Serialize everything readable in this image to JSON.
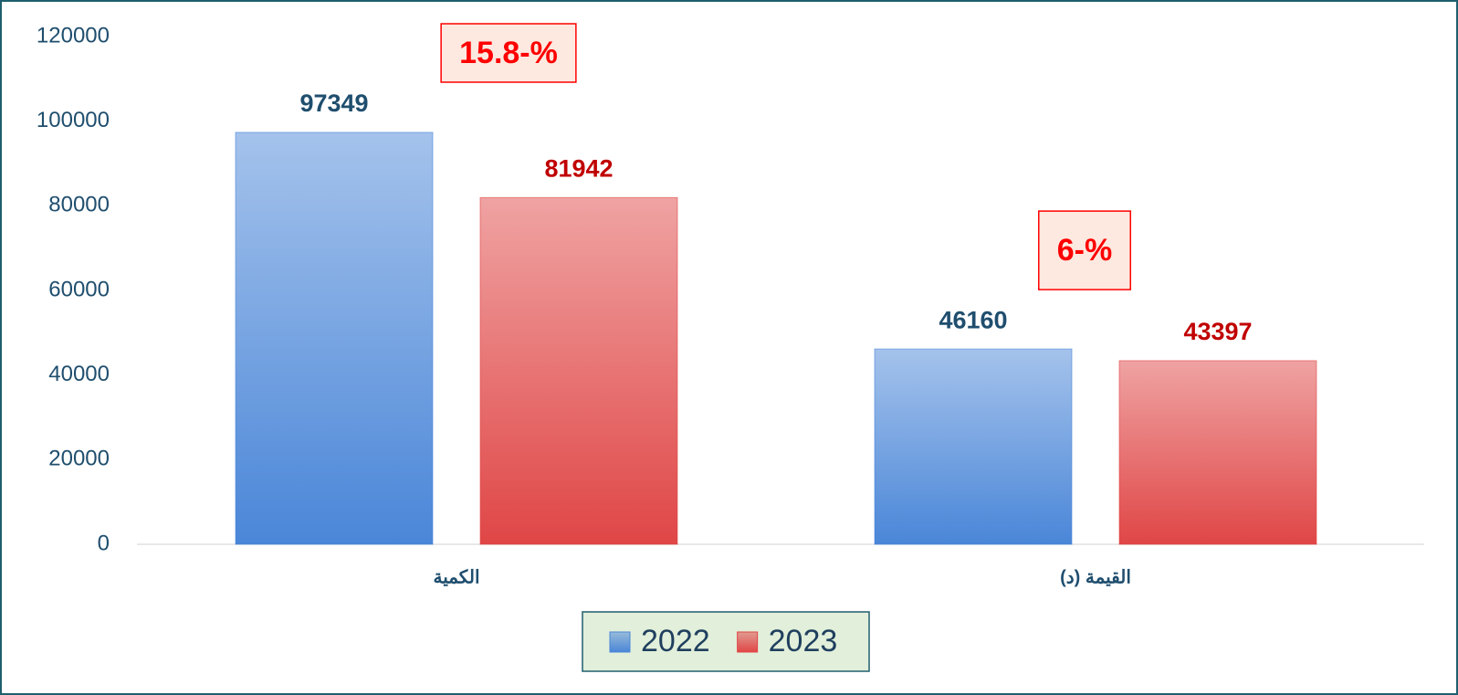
{
  "chart_data": {
    "type": "bar",
    "categories": [
      "الكمية",
      "القيمة (د)"
    ],
    "series": [
      {
        "name": "2022",
        "color": "#4a86d8",
        "label_color": "#1f4e6e",
        "values": [
          97349,
          46160
        ]
      },
      {
        "name": "2023",
        "color": "#e04646",
        "label_color": "#c00000",
        "values": [
          81942,
          43397
        ]
      }
    ],
    "annotations": [
      "15.8-%",
      "6-%"
    ],
    "ylim": [
      0,
      120000
    ],
    "yticks": [
      0,
      20000,
      40000,
      60000,
      80000,
      100000,
      120000
    ],
    "grid": false
  }
}
